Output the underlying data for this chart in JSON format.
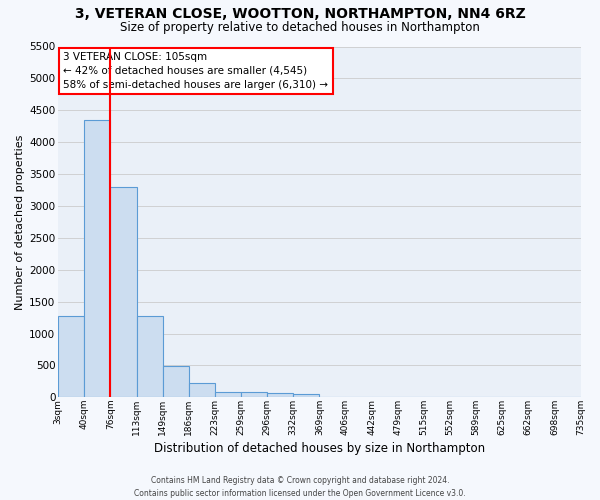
{
  "title": "3, VETERAN CLOSE, WOOTTON, NORTHAMPTON, NN4 6RZ",
  "subtitle": "Size of property relative to detached houses in Northampton",
  "xlabel": "Distribution of detached houses by size in Northampton",
  "ylabel": "Number of detached properties",
  "footer_line1": "Contains HM Land Registry data © Crown copyright and database right 2024.",
  "footer_line2": "Contains public sector information licensed under the Open Government Licence v3.0.",
  "annotation_line1": "3 VETERAN CLOSE: 105sqm",
  "annotation_line2": "← 42% of detached houses are smaller (4,545)",
  "annotation_line3": "58% of semi-detached houses are larger (6,310) →",
  "bar_values": [
    1270,
    4350,
    3300,
    1280,
    490,
    220,
    90,
    80,
    60,
    55,
    0,
    0,
    0,
    0,
    0,
    0,
    0,
    0,
    0,
    0
  ],
  "tick_labels": [
    "3sqm",
    "40sqm",
    "76sqm",
    "113sqm",
    "149sqm",
    "186sqm",
    "223sqm",
    "259sqm",
    "296sqm",
    "332sqm",
    "369sqm",
    "406sqm",
    "442sqm",
    "479sqm",
    "515sqm",
    "552sqm",
    "589sqm",
    "625sqm",
    "662sqm",
    "698sqm",
    "735sqm"
  ],
  "bar_color": "#ccddf0",
  "bar_edge_color": "#5b9bd5",
  "grid_color": "#cccccc",
  "bg_color": "#eaf0f8",
  "fig_bg_color": "#f5f8fd",
  "ylim_max": 5500,
  "yticks": [
    0,
    500,
    1000,
    1500,
    2000,
    2500,
    3000,
    3500,
    4000,
    4500,
    5000,
    5500
  ],
  "red_line_x": 1.5
}
